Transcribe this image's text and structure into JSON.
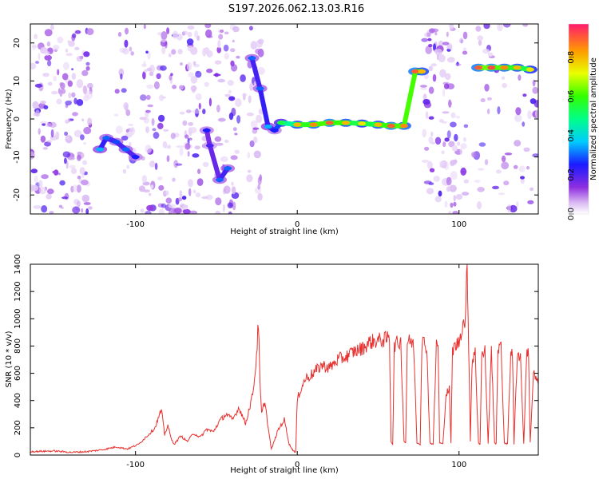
{
  "title": "S197.2026.062.13.03.R16",
  "colors": {
    "snr_line": "#e8312f",
    "axis": "#000000",
    "background": "#ffffff"
  },
  "chart_data": [
    {
      "type": "heatmap",
      "title": "S197.2026.062.13.03.R16",
      "xlabel": "Height of straight line (km)",
      "ylabel": "Frequency (Hz)",
      "xlim": [
        -165,
        149
      ],
      "ylim": [
        -25,
        25
      ],
      "x_ticks": [
        -100,
        0,
        100
      ],
      "x_tick_labels": [
        "-100",
        "0",
        "100"
      ],
      "y_ticks": [
        -20,
        -10,
        0,
        10,
        20
      ],
      "y_tick_labels": [
        "-20",
        "-10",
        "0",
        "10",
        "20"
      ],
      "colormap": "rainbow",
      "colorbar": {
        "label": "Normalized spectral amplitude",
        "range": [
          0,
          0.97
        ],
        "ticks": [
          0.0,
          0.2,
          0.4,
          0.6,
          0.8
        ],
        "tick_labels": [
          "0.0",
          "0.2",
          "0.4",
          "0.6",
          "0.8"
        ]
      },
      "ridge": [
        {
          "x": -122,
          "y": -8,
          "amp": 0.35
        },
        {
          "x": -118,
          "y": -5,
          "amp": 0.3
        },
        {
          "x": -112,
          "y": -6,
          "amp": 0.28
        },
        {
          "x": -106,
          "y": -8,
          "amp": 0.3
        },
        {
          "x": -100,
          "y": -10,
          "amp": 0.25
        },
        {
          "x": -56,
          "y": -3,
          "amp": 0.25
        },
        {
          "x": -54,
          "y": -7,
          "amp": 0.2
        },
        {
          "x": -48,
          "y": -16,
          "amp": 0.3
        },
        {
          "x": -43,
          "y": -13,
          "amp": 0.3
        },
        {
          "x": -28,
          "y": 16,
          "amp": 0.3
        },
        {
          "x": -23,
          "y": 8,
          "amp": 0.3
        },
        {
          "x": -18,
          "y": -2,
          "amp": 0.35
        },
        {
          "x": -14,
          "y": -3,
          "amp": 0.25
        },
        {
          "x": -10,
          "y": -1,
          "amp": 0.55
        },
        {
          "x": 0,
          "y": -1.5,
          "amp": 0.8
        },
        {
          "x": 10,
          "y": -1.5,
          "amp": 0.85
        },
        {
          "x": 20,
          "y": -1,
          "amp": 0.9
        },
        {
          "x": 30,
          "y": -1,
          "amp": 0.8
        },
        {
          "x": 40,
          "y": -1.2,
          "amp": 0.75
        },
        {
          "x": 50,
          "y": -1.5,
          "amp": 0.8
        },
        {
          "x": 58,
          "y": -1.8,
          "amp": 0.9
        },
        {
          "x": 66,
          "y": -1.8,
          "amp": 0.85
        },
        {
          "x": 73,
          "y": 12.5,
          "amp": 0.9
        },
        {
          "x": 77,
          "y": 12.5,
          "amp": 0.8
        },
        {
          "x": 112,
          "y": 13.5,
          "amp": 0.9
        },
        {
          "x": 120,
          "y": 13.5,
          "amp": 0.92
        },
        {
          "x": 128,
          "y": 13.5,
          "amp": 0.85
        },
        {
          "x": 136,
          "y": 13.5,
          "amp": 0.8
        },
        {
          "x": 144,
          "y": 13,
          "amp": 0.75
        }
      ],
      "noise_bands": [
        {
          "x_from": -165,
          "x_to": -127,
          "density": 1.0
        },
        {
          "x_from": -112,
          "x_to": -101,
          "density": 0.6
        },
        {
          "x_from": -96,
          "x_to": -60,
          "density": 1.0
        },
        {
          "x_from": -58,
          "x_to": -53,
          "density": 0.7
        },
        {
          "x_from": -50,
          "x_to": -36,
          "density": 0.9
        },
        {
          "x_from": -34,
          "x_to": -22,
          "density": 0.7
        },
        {
          "x_from": 78,
          "x_to": 105,
          "density": 1.0
        },
        {
          "x_from": 108,
          "x_to": 149,
          "density": 0.35
        }
      ]
    },
    {
      "type": "line",
      "xlabel": "Height of straight line (km)",
      "ylabel": "SNR (10 * v/v)",
      "xlim": [
        -165,
        149
      ],
      "ylim": [
        0,
        1400
      ],
      "x_ticks": [
        -100,
        0,
        100
      ],
      "x_tick_labels": [
        "-100",
        "0",
        "100"
      ],
      "y_ticks": [
        0,
        200,
        400,
        600,
        800,
        1000,
        1200,
        1400
      ],
      "y_tick_labels": [
        "0",
        "200",
        "400",
        "600",
        "800",
        "1000",
        "1200",
        "1400"
      ],
      "series": [
        {
          "x": [
            -165,
            -150,
            -140,
            -130,
            -120,
            -112,
            -105,
            -98,
            -92,
            -88,
            -84,
            -82,
            -80,
            -78,
            -76,
            -72,
            -68,
            -64,
            -60,
            -56,
            -52,
            -48,
            -44,
            -40,
            -36,
            -32,
            -28,
            -26,
            -24,
            -23,
            -22,
            -20,
            -18,
            -16,
            -12,
            -8,
            -5,
            -3,
            -2,
            -1,
            0,
            2,
            5,
            10,
            15,
            20,
            25,
            30,
            35,
            40,
            45,
            50,
            55,
            57,
            58,
            59,
            60,
            62,
            64,
            66,
            67,
            68,
            70,
            72,
            74,
            76,
            77,
            78,
            80,
            82,
            84,
            86,
            87,
            88,
            90,
            92,
            94,
            95,
            96,
            98,
            100,
            102,
            104,
            105,
            106,
            107,
            108,
            110,
            112,
            113,
            114,
            116,
            118,
            120,
            122,
            123,
            124,
            126,
            128,
            130,
            132,
            133,
            134,
            136,
            138,
            140,
            142,
            143,
            144,
            146,
            149
          ],
          "y": [
            25,
            30,
            20,
            25,
            40,
            60,
            45,
            80,
            150,
            200,
            330,
            150,
            220,
            120,
            80,
            140,
            100,
            160,
            130,
            190,
            170,
            250,
            300,
            260,
            350,
            230,
            420,
            600,
            970,
            500,
            300,
            400,
            200,
            40,
            180,
            260,
            80,
            40,
            30,
            20,
            400,
            480,
            560,
            600,
            660,
            640,
            700,
            720,
            760,
            780,
            830,
            840,
            850,
            860,
            100,
            80,
            810,
            820,
            830,
            100,
            90,
            820,
            840,
            800,
            90,
            80,
            820,
            830,
            800,
            90,
            80,
            810,
            830,
            90,
            80,
            450,
            480,
            90,
            780,
            800,
            830,
            950,
            1000,
            1400,
            800,
            100,
            680,
            750,
            90,
            80,
            720,
            760,
            80,
            780,
            90,
            80,
            790,
            780,
            90,
            80,
            770,
            760,
            80,
            750,
            720,
            80,
            800,
            720,
            90,
            600,
            520
          ]
        }
      ]
    }
  ]
}
